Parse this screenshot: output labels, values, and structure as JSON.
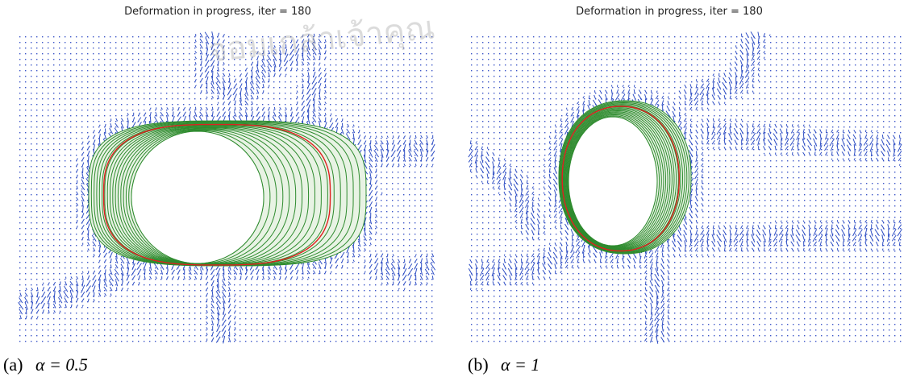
{
  "panels": [
    {
      "title": "Deformation in progress,  iter = 180",
      "caption_label": "(a)",
      "caption_expr": "α = 0.5"
    },
    {
      "title": "Deformation in progress,  iter = 180",
      "caption_label": "(b)",
      "caption_expr": "α = 1"
    }
  ],
  "watermark": "จอมเกล้าเจ้าคุณ"
}
